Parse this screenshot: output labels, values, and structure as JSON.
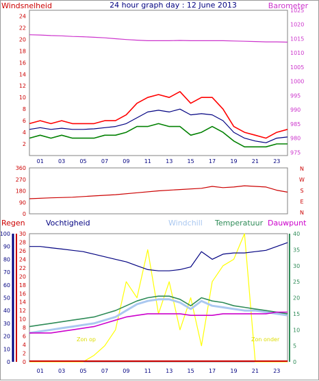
{
  "title": "24 hour graph day : 12 June 2013",
  "colors": {
    "wind_avg": "#000080",
    "wind_gust": "#ff0000",
    "wind_low": "#008000",
    "barometer": "#cc33cc",
    "direction": "#cc0000",
    "humidity": "#000080",
    "windchill": "#aac8f0",
    "temperature": "#2e8b57",
    "dewpoint": "#cc00cc",
    "rain": "#cc0000",
    "sun": "#ffff00"
  },
  "hour_labels": [
    "01",
    "03",
    "05",
    "07",
    "09",
    "11",
    "13",
    "15",
    "17",
    "19",
    "21",
    "23"
  ],
  "chart_data": [
    {
      "type": "line",
      "panel": "wind",
      "labels": {
        "left": "Windsnelheid",
        "right": "Barometer"
      },
      "y_left": {
        "ticks": [
          2,
          4,
          6,
          8,
          10,
          12,
          14,
          16,
          18,
          20,
          22,
          24
        ],
        "ylim": [
          0,
          25
        ]
      },
      "y_right": {
        "ticks": [
          975,
          980,
          985,
          990,
          995,
          1000,
          1005,
          1010,
          1015,
          1020,
          1025
        ],
        "ylim": [
          973.9,
          1025
        ]
      },
      "x": [
        0,
        1,
        2,
        3,
        4,
        5,
        6,
        7,
        8,
        9,
        10,
        11,
        12,
        13,
        14,
        15,
        16,
        17,
        18,
        19,
        20,
        21,
        22,
        23,
        24
      ],
      "gust": [
        5.5,
        6,
        5.5,
        6,
        5.5,
        5.5,
        5.5,
        6,
        6,
        7,
        9,
        10,
        10.5,
        10,
        11,
        9,
        10,
        10,
        8,
        5,
        4,
        3.5,
        3,
        4,
        4.5
      ],
      "average": [
        4.5,
        4.8,
        4.5,
        4.7,
        4.5,
        4.5,
        4.6,
        4.8,
        5,
        5.5,
        6.5,
        7.5,
        7.8,
        7.5,
        8,
        7,
        7.2,
        7,
        6,
        4,
        3,
        2.5,
        2.2,
        3,
        3.2
      ],
      "low": [
        3,
        3.5,
        3,
        3.5,
        3,
        3,
        3,
        3.5,
        3.5,
        4,
        5,
        5,
        5.5,
        5,
        5,
        3.5,
        4,
        5,
        4,
        2.5,
        1.5,
        1.5,
        1.5,
        2,
        2
      ],
      "barometer": [
        1016.4,
        1016.3,
        1016.1,
        1016.0,
        1015.8,
        1015.7,
        1015.5,
        1015.3,
        1015.0,
        1014.7,
        1014.5,
        1014.3,
        1014.3,
        1014.3,
        1014.4,
        1014.3,
        1014.3,
        1014.3,
        1014.3,
        1014.2,
        1014.1,
        1014.0,
        1013.9,
        1013.9,
        1013.8
      ]
    },
    {
      "type": "line",
      "panel": "direction",
      "y_left": {
        "ticks": [
          0,
          90,
          180,
          270,
          360
        ],
        "ylim": [
          0,
          360
        ]
      },
      "compass": [
        "N",
        "W",
        "S",
        "E",
        "N"
      ],
      "x": [
        0,
        2,
        4,
        6,
        8,
        10,
        12,
        14,
        16,
        17,
        18,
        19,
        20,
        21,
        22,
        23,
        24
      ],
      "direction": [
        118,
        125,
        130,
        140,
        150,
        165,
        180,
        190,
        200,
        215,
        205,
        210,
        220,
        215,
        210,
        185,
        170
      ]
    },
    {
      "type": "line",
      "panel": "temperature",
      "labels": {
        "rain": "Regen",
        "humidity": "Vochtigheid",
        "windchill": "Windchill",
        "temperature": "Temperatuur",
        "dewpoint": "Dauwpunt"
      },
      "y_humidity": {
        "ticks": [
          0,
          10,
          20,
          30,
          40,
          50,
          60,
          70,
          80,
          90,
          100
        ],
        "ylim": [
          0,
          100
        ]
      },
      "y_rain": {
        "ticks": [
          0,
          2,
          4,
          6,
          8,
          10,
          12,
          14,
          16,
          18,
          20,
          22,
          24,
          26,
          28,
          30
        ],
        "ylim": [
          0,
          30
        ]
      },
      "y_temp": {
        "ticks": [
          0,
          5,
          10,
          15,
          20,
          25,
          30,
          35,
          40
        ],
        "ylim": [
          0,
          40
        ]
      },
      "annotations": [
        "Zon op",
        "Zon onder"
      ],
      "x": [
        0,
        1,
        2,
        3,
        4,
        5,
        6,
        7,
        8,
        9,
        10,
        11,
        12,
        13,
        14,
        15,
        16,
        17,
        18,
        19,
        20,
        21,
        22,
        23,
        24
      ],
      "humidity": [
        90,
        90,
        89,
        88,
        87,
        86,
        84,
        82,
        80,
        78,
        75,
        72,
        71,
        71,
        72,
        74,
        86,
        80,
        84,
        85,
        85,
        86,
        87,
        90,
        93
      ],
      "temperature": [
        11,
        11.5,
        12,
        12.5,
        13,
        13.5,
        14,
        15,
        16,
        17.5,
        19,
        20,
        20.5,
        20.5,
        19.5,
        17.5,
        20,
        19,
        18.5,
        17.5,
        17,
        16.5,
        16,
        15.5,
        15
      ],
      "windchill": [
        9,
        9.5,
        10,
        10.5,
        11,
        11.5,
        12,
        13,
        14,
        16,
        18,
        19,
        19.5,
        19.5,
        18.5,
        16.5,
        19,
        17.5,
        17,
        16.5,
        16,
        16,
        15.5,
        15,
        14.5
      ],
      "dewpoint": [
        9,
        9,
        9,
        9.5,
        10,
        10.5,
        11,
        12,
        13,
        14,
        14.5,
        15,
        15,
        15,
        15,
        14.5,
        14.5,
        14.5,
        15,
        15,
        15,
        15,
        15,
        15.5,
        15.5
      ],
      "sun": [
        0,
        0,
        0,
        0,
        0,
        0,
        2,
        5,
        10,
        25,
        20,
        35,
        15,
        25,
        10,
        20,
        5,
        25,
        30,
        32,
        40,
        0,
        0,
        0,
        0
      ],
      "rain_total": 0
    }
  ]
}
